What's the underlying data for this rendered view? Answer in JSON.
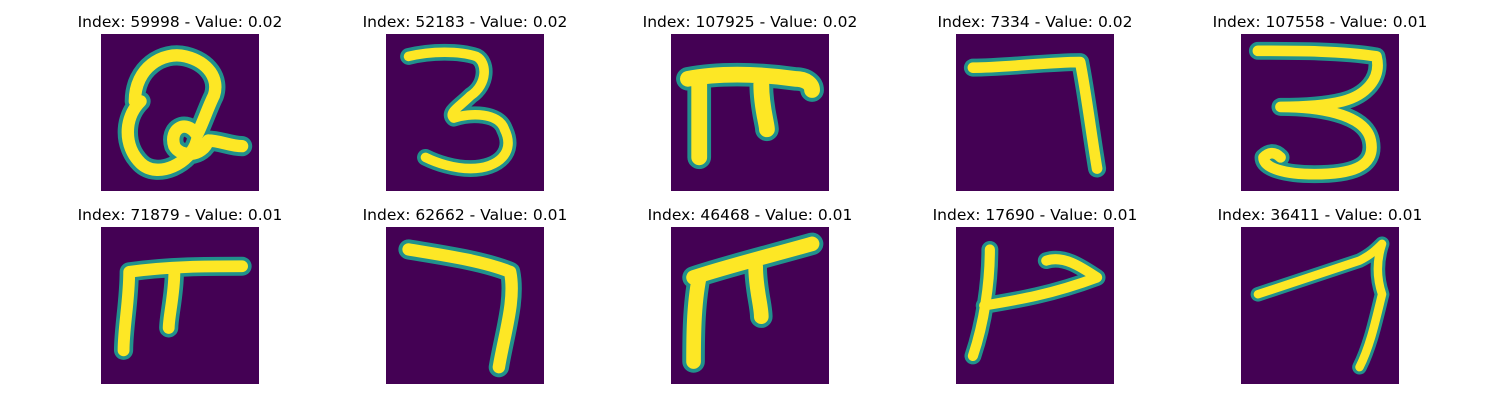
{
  "panels": [
    {
      "title": "Index: 59998 - Value: 0.02",
      "glyph": "handwritten-2-loop"
    },
    {
      "title": "Index: 52183 - Value: 0.02",
      "glyph": "handwritten-3"
    },
    {
      "title": "Index: 107925 - Value: 0.02",
      "glyph": "handwritten-pi-shape"
    },
    {
      "title": "Index: 7334 - Value: 0.02",
      "glyph": "handwritten-7"
    },
    {
      "title": "Index: 107558 - Value: 0.01",
      "glyph": "handwritten-3"
    },
    {
      "title": "Index: 71879 - Value: 0.01",
      "glyph": "handwritten-pi-shape"
    },
    {
      "title": "Index: 62662 - Value: 0.01",
      "glyph": "handwritten-7"
    },
    {
      "title": "Index: 46468 - Value: 0.01",
      "glyph": "handwritten-pi-shape"
    },
    {
      "title": "Index: 17690 - Value: 0.01",
      "glyph": "handwritten-arrow-shape"
    },
    {
      "title": "Index: 36411 - Value: 0.01",
      "glyph": "handwritten-7-slanted"
    }
  ],
  "colors": {
    "background": "#440154",
    "stroke_core": "#fde725",
    "stroke_mid": "#5ec962",
    "stroke_edge": "#21918c"
  }
}
